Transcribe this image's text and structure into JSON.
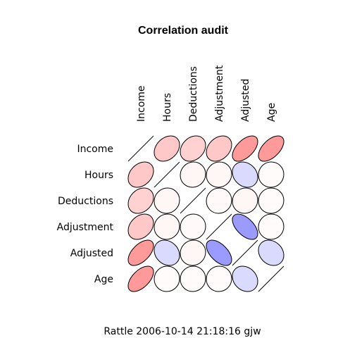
{
  "chart_data": {
    "type": "heatmap",
    "title": "Correlation audit",
    "footer": "Rattle 2006-10-14 21:18:16 gjw",
    "variables": [
      "Income",
      "Hours",
      "Deductions",
      "Adjustment",
      "Adjusted",
      "Age"
    ],
    "matrix": [
      [
        1.0,
        0.3,
        0.25,
        0.3,
        0.55,
        0.55
      ],
      [
        0.3,
        1.0,
        0.05,
        0.05,
        -0.2,
        0.02
      ],
      [
        0.25,
        0.05,
        1.0,
        0.03,
        0.05,
        0.02
      ],
      [
        0.3,
        0.05,
        0.03,
        1.0,
        -0.55,
        0.02
      ],
      [
        0.55,
        -0.2,
        0.05,
        -0.55,
        1.0,
        -0.2
      ],
      [
        0.55,
        0.02,
        0.02,
        0.02,
        -0.2,
        1.0
      ]
    ],
    "encoding": "ellipse",
    "colors": {
      "positive": "#ff0000",
      "negative": "#0000ff",
      "outline": "#000000"
    }
  }
}
